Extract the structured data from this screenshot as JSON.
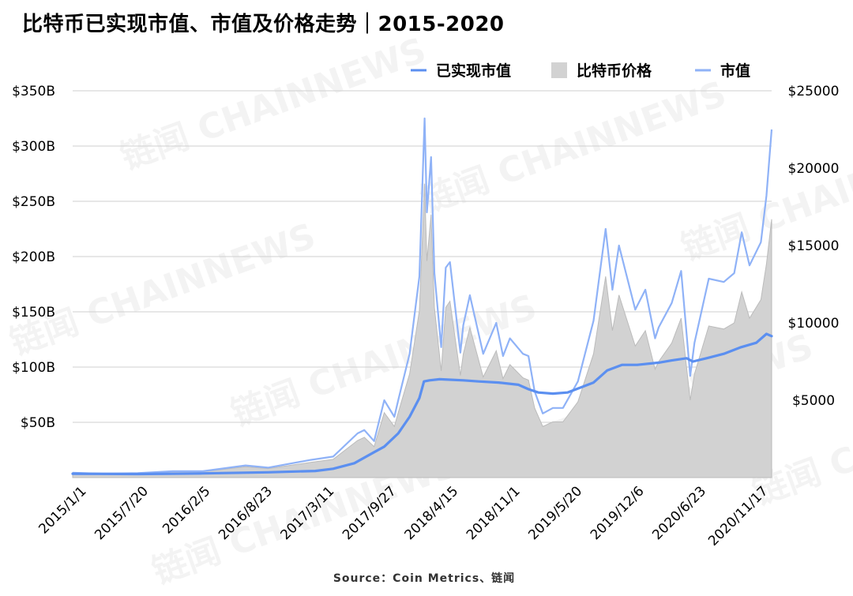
{
  "title": "比特币已实现市值、市值及价格走势｜2015-2020",
  "source": "Source：Coin Metrics、链闻",
  "watermark": "链闻 CHAINNEWS",
  "colors": {
    "realized": "#5b8ff0",
    "marketcap": "#8fb2f7",
    "price_fill": "#d2d2d2",
    "price_stroke": "#bbbbbb",
    "grid": "#cfcfcf"
  },
  "chart_data": {
    "type": "line",
    "title": "比特币已实现市值、市值及价格走势｜2015-2020",
    "x_tick_labels": [
      "2015/1/1",
      "2015/7/20",
      "2016/2/5",
      "2016/8/23",
      "2017/3/11",
      "2017/9/27",
      "2018/4/15",
      "2018/11/1",
      "2019/5/20",
      "2019/12/6",
      "2020/6/23",
      "2020/11/17"
    ],
    "left_axis": {
      "ticks": [
        "$50B",
        "$100B",
        "$150B",
        "$200B",
        "$250B",
        "$300B",
        "$350B"
      ],
      "range": [
        0,
        350
      ],
      "unit": "B USD"
    },
    "right_axis": {
      "ticks": [
        "$5000",
        "$10000",
        "$15000",
        "$20000",
        "$25000"
      ],
      "range": [
        0,
        25000
      ],
      "unit": "USD"
    },
    "legend": [
      {
        "label": "已实现市值",
        "style": "line"
      },
      {
        "label": "比特币价格",
        "style": "area"
      },
      {
        "label": "市值",
        "style": "line"
      }
    ],
    "legend_position": "top-right",
    "grid": true,
    "series": [
      {
        "name": "已实现市值",
        "axis": "left",
        "points": [
          [
            "2015-01-01",
            3.5
          ],
          [
            "2015-07-20",
            3.2
          ],
          [
            "2016-02-05",
            3.8
          ],
          [
            "2016-08-23",
            4.8
          ],
          [
            "2017-01-15",
            6
          ],
          [
            "2017-03-11",
            8
          ],
          [
            "2017-05-15",
            13
          ],
          [
            "2017-07-15",
            23
          ],
          [
            "2017-08-15",
            28
          ],
          [
            "2017-09-27",
            40
          ],
          [
            "2017-11-01",
            55
          ],
          [
            "2017-12-01",
            72
          ],
          [
            "2017-12-15",
            87
          ],
          [
            "2018-01-01",
            88
          ],
          [
            "2018-02-01",
            89
          ],
          [
            "2018-04-15",
            88
          ],
          [
            "2018-06-01",
            87
          ],
          [
            "2018-08-01",
            86
          ],
          [
            "2018-10-01",
            84
          ],
          [
            "2018-11-01",
            80
          ],
          [
            "2018-12-01",
            77
          ],
          [
            "2019-01-15",
            76
          ],
          [
            "2019-03-01",
            77
          ],
          [
            "2019-05-20",
            86
          ],
          [
            "2019-07-01",
            97
          ],
          [
            "2019-08-15",
            102
          ],
          [
            "2019-10-01",
            102
          ],
          [
            "2019-12-06",
            104
          ],
          [
            "2020-01-15",
            106
          ],
          [
            "2020-03-01",
            108
          ],
          [
            "2020-03-20",
            105
          ],
          [
            "2020-05-01",
            108
          ],
          [
            "2020-06-23",
            112
          ],
          [
            "2020-08-15",
            118
          ],
          [
            "2020-10-01",
            122
          ],
          [
            "2020-11-01",
            130
          ],
          [
            "2020-11-17",
            128
          ]
        ]
      },
      {
        "name": "比特币价格",
        "axis": "right",
        "points": [
          [
            "2015-01-01",
            320
          ],
          [
            "2015-04-01",
            250
          ],
          [
            "2015-07-20",
            280
          ],
          [
            "2015-11-05",
            390
          ],
          [
            "2016-02-05",
            380
          ],
          [
            "2016-06-15",
            700
          ],
          [
            "2016-08-23",
            580
          ],
          [
            "2017-01-01",
            980
          ],
          [
            "2017-03-11",
            1180
          ],
          [
            "2017-05-25",
            2400
          ],
          [
            "2017-06-15",
            2600
          ],
          [
            "2017-07-15",
            2000
          ],
          [
            "2017-08-15",
            4200
          ],
          [
            "2017-09-15",
            3300
          ],
          [
            "2017-09-27",
            4200
          ],
          [
            "2017-11-01",
            6700
          ],
          [
            "2017-12-01",
            10800
          ],
          [
            "2017-12-17",
            19000
          ],
          [
            "2017-12-24",
            14000
          ],
          [
            "2018-01-06",
            17000
          ],
          [
            "2018-01-16",
            11000
          ],
          [
            "2018-02-06",
            6900
          ],
          [
            "2018-02-20",
            11000
          ],
          [
            "2018-03-05",
            11400
          ],
          [
            "2018-04-06",
            6600
          ],
          [
            "2018-04-15",
            8000
          ],
          [
            "2018-05-05",
            9700
          ],
          [
            "2018-06-15",
            6500
          ],
          [
            "2018-07-25",
            8200
          ],
          [
            "2018-08-15",
            6400
          ],
          [
            "2018-09-05",
            7300
          ],
          [
            "2018-10-15",
            6450
          ],
          [
            "2018-11-01",
            6300
          ],
          [
            "2018-11-20",
            4500
          ],
          [
            "2018-12-15",
            3300
          ],
          [
            "2019-01-15",
            3600
          ],
          [
            "2019-02-15",
            3600
          ],
          [
            "2019-04-02",
            4900
          ],
          [
            "2019-05-20",
            8000
          ],
          [
            "2019-06-26",
            13000
          ],
          [
            "2019-07-17",
            9500
          ],
          [
            "2019-08-06",
            11800
          ],
          [
            "2019-09-25",
            8500
          ],
          [
            "2019-10-26",
            9500
          ],
          [
            "2019-11-25",
            7000
          ],
          [
            "2019-12-06",
            7500
          ],
          [
            "2020-01-15",
            8700
          ],
          [
            "2020-02-13",
            10300
          ],
          [
            "2020-03-12",
            5000
          ],
          [
            "2020-03-25",
            6700
          ],
          [
            "2020-05-08",
            9800
          ],
          [
            "2020-06-23",
            9600
          ],
          [
            "2020-07-25",
            10000
          ],
          [
            "2020-08-17",
            12000
          ],
          [
            "2020-09-10",
            10300
          ],
          [
            "2020-10-15",
            11500
          ],
          [
            "2020-11-01",
            13800
          ],
          [
            "2020-11-17",
            16700
          ]
        ]
      },
      {
        "name": "市值",
        "axis": "left",
        "points": [
          [
            "2015-01-01",
            4.4
          ],
          [
            "2015-04-01",
            3.5
          ],
          [
            "2015-07-20",
            4.1
          ],
          [
            "2015-11-05",
            5.8
          ],
          [
            "2016-02-05",
            5.8
          ],
          [
            "2016-06-15",
            11
          ],
          [
            "2016-08-23",
            9
          ],
          [
            "2017-01-01",
            16
          ],
          [
            "2017-03-11",
            19
          ],
          [
            "2017-05-25",
            40
          ],
          [
            "2017-06-15",
            43
          ],
          [
            "2017-07-15",
            33
          ],
          [
            "2017-08-15",
            70
          ],
          [
            "2017-09-15",
            55
          ],
          [
            "2017-09-27",
            70
          ],
          [
            "2017-11-01",
            112
          ],
          [
            "2017-12-01",
            182
          ],
          [
            "2017-12-17",
            325
          ],
          [
            "2017-12-24",
            240
          ],
          [
            "2018-01-06",
            290
          ],
          [
            "2018-01-16",
            185
          ],
          [
            "2018-02-06",
            118
          ],
          [
            "2018-02-20",
            190
          ],
          [
            "2018-03-05",
            195
          ],
          [
            "2018-04-06",
            113
          ],
          [
            "2018-04-15",
            138
          ],
          [
            "2018-05-05",
            165
          ],
          [
            "2018-06-15",
            112
          ],
          [
            "2018-07-25",
            140
          ],
          [
            "2018-08-15",
            110
          ],
          [
            "2018-09-05",
            126
          ],
          [
            "2018-10-15",
            112
          ],
          [
            "2018-11-01",
            110
          ],
          [
            "2018-11-20",
            78
          ],
          [
            "2018-12-15",
            58
          ],
          [
            "2019-01-15",
            63
          ],
          [
            "2019-02-15",
            63
          ],
          [
            "2019-04-02",
            87
          ],
          [
            "2019-05-20",
            142
          ],
          [
            "2019-06-26",
            225
          ],
          [
            "2019-07-17",
            170
          ],
          [
            "2019-08-06",
            210
          ],
          [
            "2019-09-25",
            152
          ],
          [
            "2019-10-26",
            170
          ],
          [
            "2019-11-25",
            126
          ],
          [
            "2019-12-06",
            136
          ],
          [
            "2020-01-15",
            158
          ],
          [
            "2020-02-13",
            187
          ],
          [
            "2020-03-12",
            92
          ],
          [
            "2020-03-25",
            122
          ],
          [
            "2020-05-08",
            180
          ],
          [
            "2020-06-23",
            177
          ],
          [
            "2020-07-25",
            185
          ],
          [
            "2020-08-17",
            222
          ],
          [
            "2020-09-10",
            192
          ],
          [
            "2020-10-15",
            213
          ],
          [
            "2020-11-01",
            255
          ],
          [
            "2020-11-17",
            315
          ]
        ]
      }
    ]
  }
}
